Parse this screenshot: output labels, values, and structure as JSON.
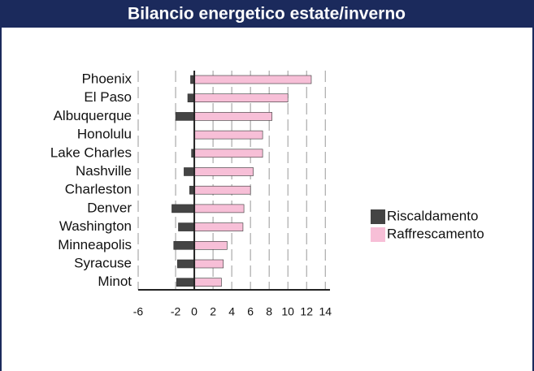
{
  "chart_data": {
    "type": "bar",
    "orientation": "horizontal",
    "stacked": false,
    "title": "Bilancio energetico estate/inverno",
    "categories": [
      "Phoenix",
      "El Paso",
      "Albuquerque",
      "Honolulu",
      "Lake Charles",
      "Nashville",
      "Charleston",
      "Denver",
      "Washington",
      "Minneapolis",
      "Syracuse",
      "Minot"
    ],
    "series": [
      {
        "name": "Riscaldamento",
        "color": "#444444",
        "values": [
          -0.4,
          -0.7,
          -2.0,
          0,
          -0.3,
          -1.1,
          -0.5,
          -2.4,
          -1.7,
          -2.2,
          -1.8,
          -1.9
        ]
      },
      {
        "name": "Raffrescamento",
        "color": "#f7bfd7",
        "values": [
          12.5,
          10.0,
          8.3,
          7.3,
          7.3,
          6.3,
          6.0,
          5.3,
          5.2,
          3.5,
          3.1,
          2.9
        ]
      }
    ],
    "xlim": [
      -6,
      14.5
    ],
    "xticks": [
      -6,
      -2,
      0,
      2,
      4,
      6,
      8,
      10,
      12,
      14
    ],
    "grid": true,
    "legend": "right"
  }
}
